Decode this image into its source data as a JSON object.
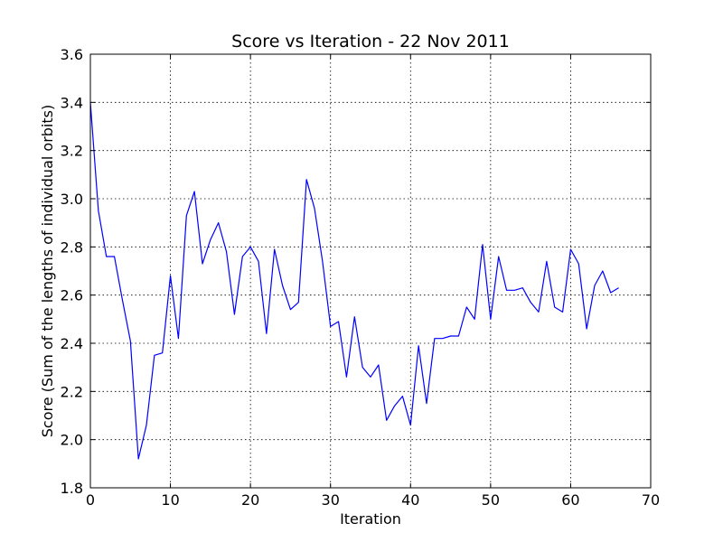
{
  "chart_data": {
    "type": "line",
    "title": "Score vs Iteration - 22 Nov 2011",
    "xlabel": "Iteration",
    "ylabel": "Score (Sum of the lengths of individual orbits)",
    "xlim": [
      0,
      70
    ],
    "ylim": [
      1.8,
      3.6
    ],
    "xticks": [
      0,
      10,
      20,
      30,
      40,
      50,
      60,
      70
    ],
    "yticks": [
      1.8,
      2.0,
      2.2,
      2.4,
      2.6,
      2.8,
      3.0,
      3.2,
      3.4,
      3.6
    ],
    "xtick_labels": [
      "0",
      "10",
      "20",
      "30",
      "40",
      "50",
      "60",
      "70"
    ],
    "ytick_labels": [
      "1.8",
      "2.0",
      "2.2",
      "2.4",
      "2.6",
      "2.8",
      "3.0",
      "3.2",
      "3.4",
      "3.6"
    ],
    "grid": true,
    "series": [
      {
        "color": "#0000ff",
        "x": [
          0,
          1,
          2,
          3,
          4,
          5,
          6,
          7,
          8,
          9,
          10,
          11,
          12,
          13,
          14,
          15,
          16,
          17,
          18,
          19,
          20,
          21,
          22,
          23,
          24,
          25,
          26,
          27,
          28,
          29,
          30,
          31,
          32,
          33,
          34,
          35,
          36,
          37,
          38,
          39,
          40,
          41,
          42,
          43,
          44,
          45,
          46,
          47,
          48,
          49,
          50,
          51,
          52,
          53,
          54,
          55,
          56,
          57,
          58,
          59,
          60,
          61,
          62,
          63,
          64,
          65,
          66
        ],
        "y": [
          3.4,
          2.95,
          2.76,
          2.76,
          2.58,
          2.41,
          1.92,
          2.06,
          2.35,
          2.36,
          2.68,
          2.42,
          2.93,
          3.03,
          2.73,
          2.83,
          2.9,
          2.78,
          2.52,
          2.76,
          2.8,
          2.74,
          2.44,
          2.79,
          2.64,
          2.54,
          2.57,
          3.08,
          2.96,
          2.74,
          2.47,
          2.49,
          2.26,
          2.51,
          2.3,
          2.26,
          2.31,
          2.08,
          2.14,
          2.18,
          2.06,
          2.39,
          2.15,
          2.42,
          2.42,
          2.43,
          2.43,
          2.55,
          2.5,
          2.81,
          2.5,
          2.76,
          2.62,
          2.62,
          2.63,
          2.57,
          2.53,
          2.74,
          2.55,
          2.53,
          2.79,
          2.73,
          2.46,
          2.64,
          2.7,
          2.61,
          2.63
        ]
      }
    ]
  }
}
